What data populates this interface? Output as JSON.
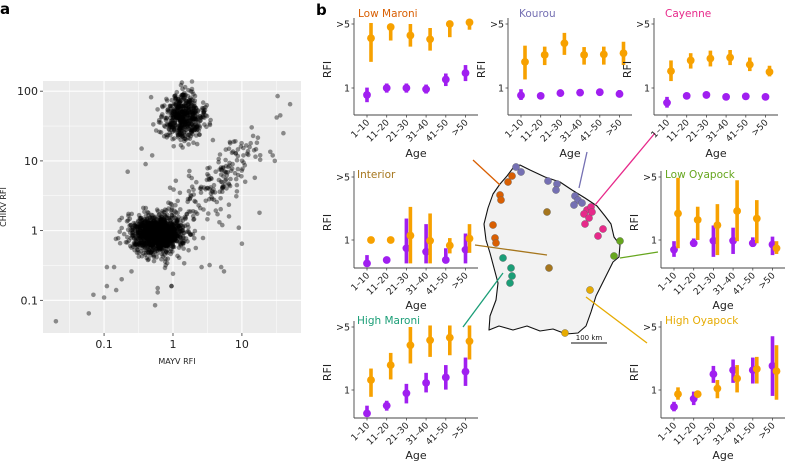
{
  "panel_labels": {
    "a": "a",
    "b": "b"
  },
  "chart_data": [
    {
      "type": "scatter",
      "panel": "a",
      "xlabel": "MAYV RFI",
      "ylabel": "CHIKV RFI",
      "xscale": "log",
      "yscale": "log",
      "xlim": [
        0.013,
        72
      ],
      "ylim": [
        0.034,
        140
      ],
      "x_ticks": [
        {
          "v": 0.1,
          "label": "0.1"
        },
        {
          "v": 1,
          "label": "1"
        },
        {
          "v": 10,
          "label": "10"
        }
      ],
      "y_ticks": [
        {
          "v": 0.1,
          "label": "0.1"
        },
        {
          "v": 1,
          "label": "1"
        },
        {
          "v": 10,
          "label": "10"
        },
        {
          "v": 100,
          "label": "100"
        }
      ],
      "grid": true,
      "point_color": "#000000",
      "clusters": [
        {
          "name": "high-chikv",
          "center_x": 1.4,
          "center_y": 42,
          "log_sd_x": 0.15,
          "log_sd_y": 0.17,
          "n": 520
        },
        {
          "name": "low-both",
          "center_x": 0.6,
          "center_y": 0.9,
          "log_sd_x": 0.19,
          "log_sd_y": 0.14,
          "n": 1250
        },
        {
          "name": "diagonal-band",
          "from_x": 1.5,
          "from_y": 2,
          "to_x": 15,
          "to_y": 15,
          "log_sd": 0.16,
          "n": 170
        }
      ],
      "outliers": [
        [
          0.02,
          0.05
        ],
        [
          0.06,
          0.065
        ],
        [
          0.07,
          0.12
        ],
        [
          0.1,
          0.11
        ],
        [
          0.11,
          0.16
        ],
        [
          0.11,
          0.3
        ],
        [
          0.14,
          0.3
        ],
        [
          0.15,
          0.14
        ],
        [
          0.18,
          0.2
        ],
        [
          0.22,
          7
        ],
        [
          33,
          85
        ],
        [
          50,
          65
        ],
        [
          40,
          25
        ],
        [
          36,
          45
        ],
        [
          30,
          10
        ],
        [
          32,
          42
        ],
        [
          28,
          12
        ],
        [
          18,
          1.8
        ],
        [
          10,
          0.65
        ],
        [
          9,
          1.1
        ],
        [
          0.55,
          0.085
        ],
        [
          5,
          0.3
        ],
        [
          5.5,
          0.26
        ],
        [
          0.95,
          0.16
        ],
        [
          0.6,
          0.15
        ],
        [
          0.6,
          0.13
        ],
        [
          1,
          0.24
        ],
        [
          0.95,
          0.16
        ],
        [
          3.4,
          0.32
        ],
        [
          2.6,
          0.3
        ],
        [
          0.25,
          0.26
        ],
        [
          0.4,
          9
        ],
        [
          0.5,
          12
        ],
        [
          0.35,
          15
        ],
        [
          6.5,
          1.6
        ],
        [
          5.2,
          1.2
        ]
      ]
    },
    {
      "type": "errorbar",
      "panel": "b",
      "xlabel": "Age",
      "ylabel": "RFI",
      "yscale": "log",
      "y_ticks": [
        {
          "v": 1,
          "label": "1"
        },
        {
          "v": 5,
          "label": ">5"
        }
      ],
      "age_groups": [
        "1–10",
        "11–20",
        "21–30",
        "31–40",
        "41–50",
        ">50"
      ],
      "series_colors": {
        "orange_series": "#f7a100",
        "purple_series": "#a01ff0"
      },
      "note": "values are [mean, lower, upper] RFI",
      "regions": [
        {
          "name": "Low Maroni",
          "color": "#d95f02",
          "orange_series": [
            [
              3.5,
              1.93,
              5.13
            ],
            [
              4.63,
              3.3,
              5.0
            ],
            [
              3.75,
              2.83,
              5.0
            ],
            [
              3.41,
              2.56,
              4.52
            ],
            [
              5.0,
              3.59,
              5.2
            ],
            [
              5.21,
              4.33,
              5.48
            ]
          ],
          "purple_series": [
            [
              0.84,
              0.7,
              1.01
            ],
            [
              1.0,
              0.89,
              1.12
            ],
            [
              1.0,
              0.89,
              1.12
            ],
            [
              0.97,
              0.87,
              1.09
            ],
            [
              1.24,
              1.05,
              1.44
            ],
            [
              1.46,
              1.19,
              1.78
            ]
          ]
        },
        {
          "name": "Kourou",
          "color": "#7570b3",
          "orange_series": [
            [
              1.93,
              1.24,
              2.9
            ],
            [
              2.3,
              1.78,
              2.83
            ],
            [
              3.08,
              2.3,
              4.0
            ],
            [
              2.3,
              1.8,
              2.8
            ],
            [
              2.33,
              1.8,
              2.83
            ],
            [
              2.4,
              1.78,
              3.2
            ]
          ],
          "purple_series": [
            [
              0.83,
              0.74,
              0.97
            ],
            [
              0.82,
              0.8,
              0.84
            ],
            [
              0.88,
              0.83,
              0.93
            ],
            [
              0.89,
              0.86,
              0.95
            ],
            [
              0.9,
              0.86,
              0.97
            ],
            [
              0.86,
              0.81,
              0.95
            ]
          ]
        },
        {
          "name": "Cayenne",
          "color": "#e7298a",
          "orange_series": [
            [
              1.53,
              1.19,
              2.0
            ],
            [
              2.0,
              1.63,
              2.4
            ],
            [
              2.1,
              1.72,
              2.56
            ],
            [
              2.15,
              1.78,
              2.6
            ],
            [
              1.8,
              1.53,
              2.15
            ],
            [
              1.5,
              1.34,
              1.75
            ]
          ],
          "purple_series": [
            [
              0.69,
              0.61,
              0.8
            ],
            [
              0.82,
              null,
              null
            ],
            [
              0.84,
              null,
              null
            ],
            [
              0.8,
              null,
              null
            ],
            [
              0.81,
              null,
              null
            ],
            [
              0.8,
              null,
              null
            ]
          ]
        },
        {
          "name": "Interior",
          "color": "#a6761d",
          "orange_series": [
            [
              1.0,
              null,
              null
            ],
            [
              1.0,
              null,
              null
            ],
            [
              1.12,
              0.55,
              2.33
            ],
            [
              0.98,
              0.55,
              1.97
            ],
            [
              0.87,
              0.71,
              1.05
            ],
            [
              1.04,
              0.72,
              1.5
            ]
          ],
          "purple_series": [
            [
              0.55,
              0.52,
              0.68
            ],
            [
              0.6,
              0.56,
              0.65
            ],
            [
              0.81,
              0.55,
              1.73
            ],
            [
              0.74,
              0.55,
              1.5
            ],
            [
              0.6,
              0.55,
              0.81
            ],
            [
              0.78,
              0.55,
              1.18
            ]
          ]
        },
        {
          "name": "Low Oyapock",
          "color": "#66a61e",
          "orange_series": [
            [
              1.97,
              0.81,
              4.9
            ],
            [
              1.67,
              1.0,
              2.34
            ],
            [
              1.46,
              0.68,
              2.5
            ],
            [
              2.1,
              0.97,
              4.6
            ],
            [
              1.73,
              0.92,
              2.77
            ],
            [
              0.81,
              0.7,
              0.97
            ]
          ],
          "purple_series": [
            [
              0.78,
              0.65,
              0.97
            ],
            [
              0.92,
              0.84,
              1.04
            ],
            [
              0.98,
              0.65,
              1.45
            ],
            [
              0.98,
              0.7,
              1.37
            ],
            [
              0.92,
              0.84,
              1.07
            ],
            [
              0.89,
              0.68,
              1.09
            ]
          ]
        },
        {
          "name": "High Maroni",
          "color": "#1b9e77",
          "orange_series": [
            [
              1.29,
              0.84,
              1.73
            ],
            [
              1.89,
              1.31,
              2.58
            ],
            [
              3.14,
              1.97,
              5.0
            ],
            [
              3.56,
              2.33,
              5.2
            ],
            [
              3.81,
              2.43,
              5.2
            ],
            [
              3.47,
              2.18,
              5.2
            ]
          ],
          "purple_series": [
            [
              0.55,
              0.52,
              0.67
            ],
            [
              0.67,
              0.59,
              0.76
            ],
            [
              0.92,
              0.71,
              1.17
            ],
            [
              1.2,
              0.94,
              1.55
            ],
            [
              1.38,
              1.01,
              1.89
            ],
            [
              1.6,
              1.11,
              2.29
            ]
          ]
        },
        {
          "name": "High Oyapock",
          "color": "#e6ab02",
          "orange_series": [
            [
              0.9,
              0.78,
              1.07
            ],
            [
              0.9,
              null,
              null
            ],
            [
              1.04,
              0.81,
              1.29
            ],
            [
              1.34,
              0.94,
              1.89
            ],
            [
              1.71,
              1.18,
              2.33
            ],
            [
              1.62,
              0.78,
              3.14
            ]
          ],
          "purple_series": [
            [
              0.65,
              0.58,
              0.74
            ],
            [
              0.8,
              0.68,
              0.96
            ],
            [
              1.5,
              1.2,
              1.85
            ],
            [
              1.66,
              1.2,
              2.18
            ],
            [
              1.66,
              1.18,
              2.29
            ],
            [
              1.85,
              0.86,
              3.95
            ]
          ]
        }
      ]
    }
  ],
  "map": {
    "scale_bar_label": "100 km",
    "land_color": "#f2f2f2",
    "sites": [
      {
        "region": "Low Maroni",
        "color": "#d95f02"
      },
      {
        "region": "Kourou",
        "color": "#7570b3"
      },
      {
        "region": "Cayenne",
        "color": "#e7298a"
      },
      {
        "region": "Interior",
        "color": "#a6761d"
      },
      {
        "region": "Low Oyapock",
        "color": "#66a61e"
      },
      {
        "region": "High Maroni",
        "color": "#1b9e77"
      },
      {
        "region": "High Oyapock",
        "color": "#e6ab02"
      }
    ]
  }
}
